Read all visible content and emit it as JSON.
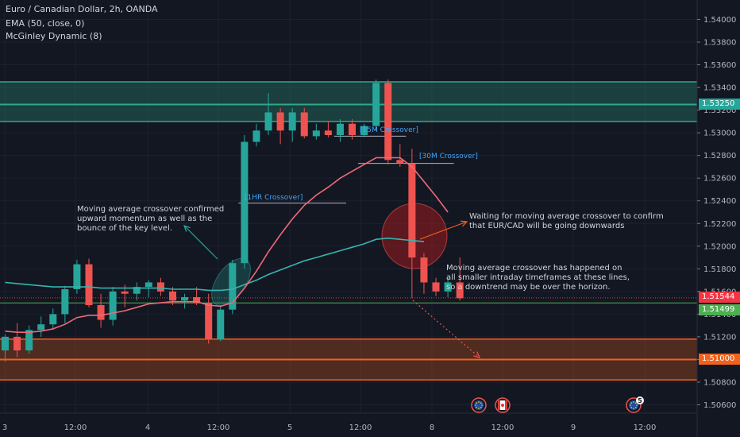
{
  "header": {
    "title": "Euro / Canadian Dollar, 2h, OANDA",
    "indicator1": "EMA (50, close, 0)",
    "indicator2": "McGinley Dynamic (8)"
  },
  "chart_data": {
    "type": "candlestick",
    "y_ticks": [
      "1.54000",
      "1.53800",
      "1.53600",
      "1.53400",
      "1.53200",
      "1.53000",
      "1.52800",
      "1.52600",
      "1.52400",
      "1.52200",
      "1.52000",
      "1.51800",
      "1.51600",
      "1.51400",
      "1.51200",
      "1.51000",
      "1.50800",
      "1.50600"
    ],
    "y_tick_values": [
      1.54,
      1.538,
      1.536,
      1.534,
      1.532,
      1.53,
      1.528,
      1.526,
      1.524,
      1.522,
      1.52,
      1.518,
      1.516,
      1.514,
      1.512,
      1.51,
      1.508,
      1.506
    ],
    "ylim": [
      1.5045,
      1.5415
    ],
    "x_ticks": [
      "3",
      "12:00",
      "4",
      "12:00",
      "5",
      "12:00",
      "8",
      "12:00",
      "9",
      "12:00"
    ],
    "candles": [
      {
        "o": 1.5108,
        "h": 1.5122,
        "l": 1.5098,
        "c": 1.512
      },
      {
        "o": 1.512,
        "h": 1.5132,
        "l": 1.5102,
        "c": 1.5108
      },
      {
        "o": 1.5108,
        "h": 1.513,
        "l": 1.5105,
        "c": 1.5126
      },
      {
        "o": 1.5126,
        "h": 1.5138,
        "l": 1.512,
        "c": 1.5131
      },
      {
        "o": 1.5131,
        "h": 1.5145,
        "l": 1.5126,
        "c": 1.514
      },
      {
        "o": 1.514,
        "h": 1.5165,
        "l": 1.5132,
        "c": 1.5162
      },
      {
        "o": 1.5162,
        "h": 1.5188,
        "l": 1.5158,
        "c": 1.5184
      },
      {
        "o": 1.5184,
        "h": 1.5189,
        "l": 1.5146,
        "c": 1.5148
      },
      {
        "o": 1.5148,
        "h": 1.5158,
        "l": 1.5128,
        "c": 1.5135
      },
      {
        "o": 1.5135,
        "h": 1.5164,
        "l": 1.513,
        "c": 1.516
      },
      {
        "o": 1.516,
        "h": 1.5166,
        "l": 1.5146,
        "c": 1.5158
      },
      {
        "o": 1.5158,
        "h": 1.5168,
        "l": 1.5152,
        "c": 1.5164
      },
      {
        "o": 1.5164,
        "h": 1.517,
        "l": 1.5155,
        "c": 1.5168
      },
      {
        "o": 1.5168,
        "h": 1.5172,
        "l": 1.5156,
        "c": 1.516
      },
      {
        "o": 1.516,
        "h": 1.5164,
        "l": 1.5148,
        "c": 1.5152
      },
      {
        "o": 1.5152,
        "h": 1.5158,
        "l": 1.5145,
        "c": 1.5155
      },
      {
        "o": 1.5155,
        "h": 1.5164,
        "l": 1.5148,
        "c": 1.515
      },
      {
        "o": 1.515,
        "h": 1.5158,
        "l": 1.5114,
        "c": 1.5118
      },
      {
        "o": 1.5118,
        "h": 1.5148,
        "l": 1.5116,
        "c": 1.5144
      },
      {
        "o": 1.5144,
        "h": 1.5188,
        "l": 1.514,
        "c": 1.5185
      },
      {
        "o": 1.5185,
        "h": 1.5298,
        "l": 1.518,
        "c": 1.5292
      },
      {
        "o": 1.5292,
        "h": 1.5308,
        "l": 1.5288,
        "c": 1.5302
      },
      {
        "o": 1.5302,
        "h": 1.5335,
        "l": 1.5298,
        "c": 1.5318
      },
      {
        "o": 1.5318,
        "h": 1.5322,
        "l": 1.529,
        "c": 1.5302
      },
      {
        "o": 1.5302,
        "h": 1.5322,
        "l": 1.5292,
        "c": 1.5318
      },
      {
        "o": 1.5318,
        "h": 1.5322,
        "l": 1.5295,
        "c": 1.5297
      },
      {
        "o": 1.5297,
        "h": 1.5308,
        "l": 1.5294,
        "c": 1.5302
      },
      {
        "o": 1.5302,
        "h": 1.531,
        "l": 1.5296,
        "c": 1.5298
      },
      {
        "o": 1.5298,
        "h": 1.5312,
        "l": 1.5292,
        "c": 1.5308
      },
      {
        "o": 1.5308,
        "h": 1.5312,
        "l": 1.5294,
        "c": 1.5298
      },
      {
        "o": 1.5298,
        "h": 1.5308,
        "l": 1.5296,
        "c": 1.5306
      },
      {
        "o": 1.5306,
        "h": 1.5347,
        "l": 1.5302,
        "c": 1.5344
      },
      {
        "o": 1.5344,
        "h": 1.5347,
        "l": 1.5272,
        "c": 1.5276
      },
      {
        "o": 1.5276,
        "h": 1.529,
        "l": 1.527,
        "c": 1.5273
      },
      {
        "o": 1.5273,
        "h": 1.5286,
        "l": 1.5154,
        "c": 1.519
      },
      {
        "o": 1.519,
        "h": 1.5194,
        "l": 1.5158,
        "c": 1.5168
      },
      {
        "o": 1.5168,
        "h": 1.5172,
        "l": 1.5156,
        "c": 1.516
      },
      {
        "o": 1.516,
        "h": 1.5172,
        "l": 1.5155,
        "c": 1.5168
      },
      {
        "o": 1.5168,
        "h": 1.519,
        "l": 1.5152,
        "c": 1.5154
      }
    ],
    "ema50": [
      1.5168,
      1.5167,
      1.5166,
      1.5165,
      1.5164,
      1.5164,
      1.5164,
      1.5164,
      1.5163,
      1.5163,
      1.5163,
      1.5163,
      1.5163,
      1.5163,
      1.5162,
      1.5162,
      1.5162,
      1.5161,
      1.5161,
      1.5162,
      1.5166,
      1.517,
      1.5175,
      1.5179,
      1.5183,
      1.5187,
      1.519,
      1.5193,
      1.5196,
      1.5199,
      1.5202,
      1.5206,
      1.5207,
      1.5206,
      1.5205,
      1.5204
    ],
    "mcginley": [
      1.5125,
      1.5124,
      1.5124,
      1.5125,
      1.5127,
      1.5131,
      1.5137,
      1.5139,
      1.5139,
      1.5141,
      1.5143,
      1.5146,
      1.5149,
      1.515,
      1.5151,
      1.5151,
      1.5151,
      1.5148,
      1.5147,
      1.515,
      1.5163,
      1.5178,
      1.5195,
      1.521,
      1.5224,
      1.5236,
      1.5245,
      1.5252,
      1.526,
      1.5266,
      1.5272,
      1.5278,
      1.5278,
      1.5278,
      1.527,
      1.5257,
      1.5244,
      1.523
    ],
    "zones": [
      {
        "name": "resistance",
        "top": 1.5345,
        "bottom": 1.531,
        "line": 1.5325,
        "color": "#2eaa8a"
      },
      {
        "name": "support",
        "top": 1.5118,
        "bottom": 1.5082,
        "line": 1.51,
        "color": "#f0621d"
      }
    ],
    "levels": [
      {
        "value": 1.51544,
        "color": "#f23645",
        "dotted": true
      },
      {
        "value": 1.51499,
        "color": "#4caf50",
        "dotted": false
      }
    ],
    "crossover_lines": [
      {
        "value": 1.5238,
        "x_start": 19.5,
        "x_end": 28.5
      },
      {
        "value": 1.5297,
        "x_start": 27.5,
        "x_end": 33.5
      },
      {
        "value": 1.5273,
        "x_start": 29.5,
        "x_end": 37.5
      }
    ]
  },
  "price_labels": {
    "resistance": "1.53250",
    "current": "1.51544",
    "green": "1.51499",
    "support": "1.51000"
  },
  "tags": {
    "tag_1hr": "[1HR Crossover]",
    "tag_15m": "[15M Crossover]",
    "tag_30m": "[30M Crossover]"
  },
  "annotations": {
    "left": "Moving average crossover confirmed\nupward momentum as well as the\nbounce of the key level.",
    "right_top": "Waiting for moving average crossover to confirm\nthat EUR/CAD will be going downwards",
    "right_mid": "Moving average crossover has happened on\nall smaller intraday timeframes at these lines,\nso a downtrend may be over the horizon."
  },
  "events": {
    "badge_count": "5"
  },
  "colors": {
    "background": "#131722",
    "bull": "#26a69a",
    "bear": "#ef5350",
    "ema": "#36b3b0",
    "mcginley": "#ef6a78"
  }
}
